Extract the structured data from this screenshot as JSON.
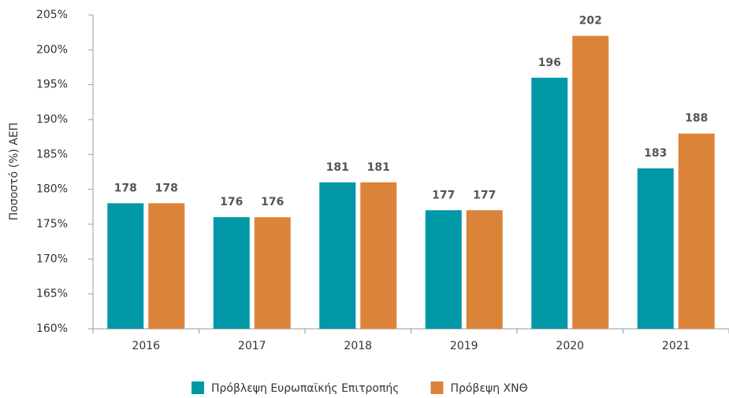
{
  "chart_data": {
    "type": "bar",
    "y_label": "Ποσοστό (%) ΑΕΠ",
    "categories": [
      "2016",
      "2017",
      "2018",
      "2019",
      "2020",
      "2021"
    ],
    "series": [
      {
        "name": "Πρόβλεψη Ευρωπαϊκής Επιτροπής",
        "color": "#0097a7",
        "values": [
          178,
          176,
          181,
          177,
          196,
          183
        ]
      },
      {
        "name": "Πρόβεψη ΧΝΘ",
        "color": "#dc833a",
        "values": [
          178,
          176,
          181,
          177,
          202,
          188
        ]
      }
    ],
    "ylim": [
      160,
      205
    ],
    "yticks": [
      {
        "value": 160,
        "label": "160%"
      },
      {
        "value": 165,
        "label": "165%"
      },
      {
        "value": 170,
        "label": "170%"
      },
      {
        "value": 175,
        "label": "175%"
      },
      {
        "value": 180,
        "label": "180%"
      },
      {
        "value": 185,
        "label": "185%"
      },
      {
        "value": 190,
        "label": "190%"
      },
      {
        "value": 195,
        "label": "195%"
      },
      {
        "value": 200,
        "label": "200%"
      },
      {
        "value": 205,
        "label": "205%"
      }
    ],
    "legend": "bottom"
  }
}
